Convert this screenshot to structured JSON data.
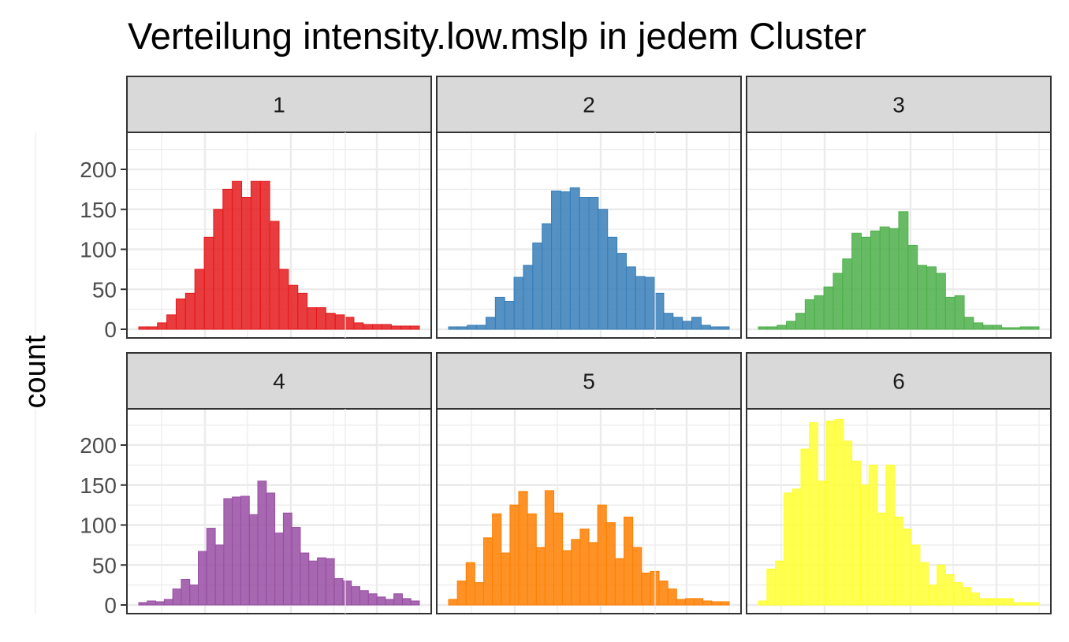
{
  "chart_data": {
    "type": "bar",
    "title": "Verteilung intensity.low.mslp in jedem Cluster",
    "xlabel": "",
    "ylabel": "count",
    "y_ticks": [
      0,
      50,
      100,
      150,
      200
    ],
    "ylim": [
      0,
      240
    ],
    "grid": true,
    "facets": [
      {
        "label": "1",
        "color": "#e41a1c",
        "values": [
          3,
          3,
          8,
          18,
          38,
          45,
          75,
          115,
          150,
          175,
          185,
          165,
          185,
          185,
          135,
          75,
          55,
          45,
          27,
          27,
          20,
          18,
          15,
          8,
          6,
          6,
          6,
          4,
          4,
          4
        ]
      },
      {
        "label": "2",
        "color": "#377eb8",
        "values": [
          3,
          3,
          5,
          5,
          15,
          40,
          35,
          65,
          80,
          108,
          132,
          173,
          172,
          177,
          165,
          165,
          150,
          115,
          95,
          78,
          66,
          65,
          45,
          20,
          15,
          10,
          15,
          5,
          3,
          3
        ]
      },
      {
        "label": "3",
        "color": "#4daf4a",
        "values": [
          3,
          3,
          5,
          10,
          20,
          37,
          42,
          53,
          70,
          88,
          120,
          115,
          123,
          128,
          126,
          147,
          105,
          80,
          78,
          70,
          40,
          42,
          15,
          8,
          5,
          5,
          2,
          2,
          3,
          3
        ]
      },
      {
        "label": "4",
        "color": "#984ea3",
        "values": [
          3,
          5,
          4,
          7,
          20,
          32,
          25,
          67,
          96,
          75,
          133,
          135,
          136,
          113,
          155,
          140,
          90,
          115,
          97,
          65,
          55,
          59,
          58,
          33,
          30,
          23,
          18,
          14,
          10,
          7,
          14,
          8,
          5
        ]
      },
      {
        "label": "5",
        "color": "#ff7f00",
        "values": [
          7,
          30,
          53,
          28,
          84,
          114,
          65,
          125,
          142,
          114,
          72,
          143,
          115,
          68,
          82,
          95,
          78,
          125,
          103,
          58,
          110,
          72,
          40,
          42,
          30,
          20,
          7,
          8,
          8,
          5,
          4,
          4
        ]
      },
      {
        "label": "6",
        "color": "#ffff33",
        "values": [
          5,
          45,
          55,
          140,
          145,
          195,
          228,
          155,
          230,
          232,
          205,
          180,
          150,
          175,
          115,
          175,
          110,
          95,
          75,
          53,
          25,
          50,
          38,
          28,
          22,
          15,
          8,
          8,
          8,
          8,
          3,
          3,
          3
        ]
      }
    ]
  }
}
